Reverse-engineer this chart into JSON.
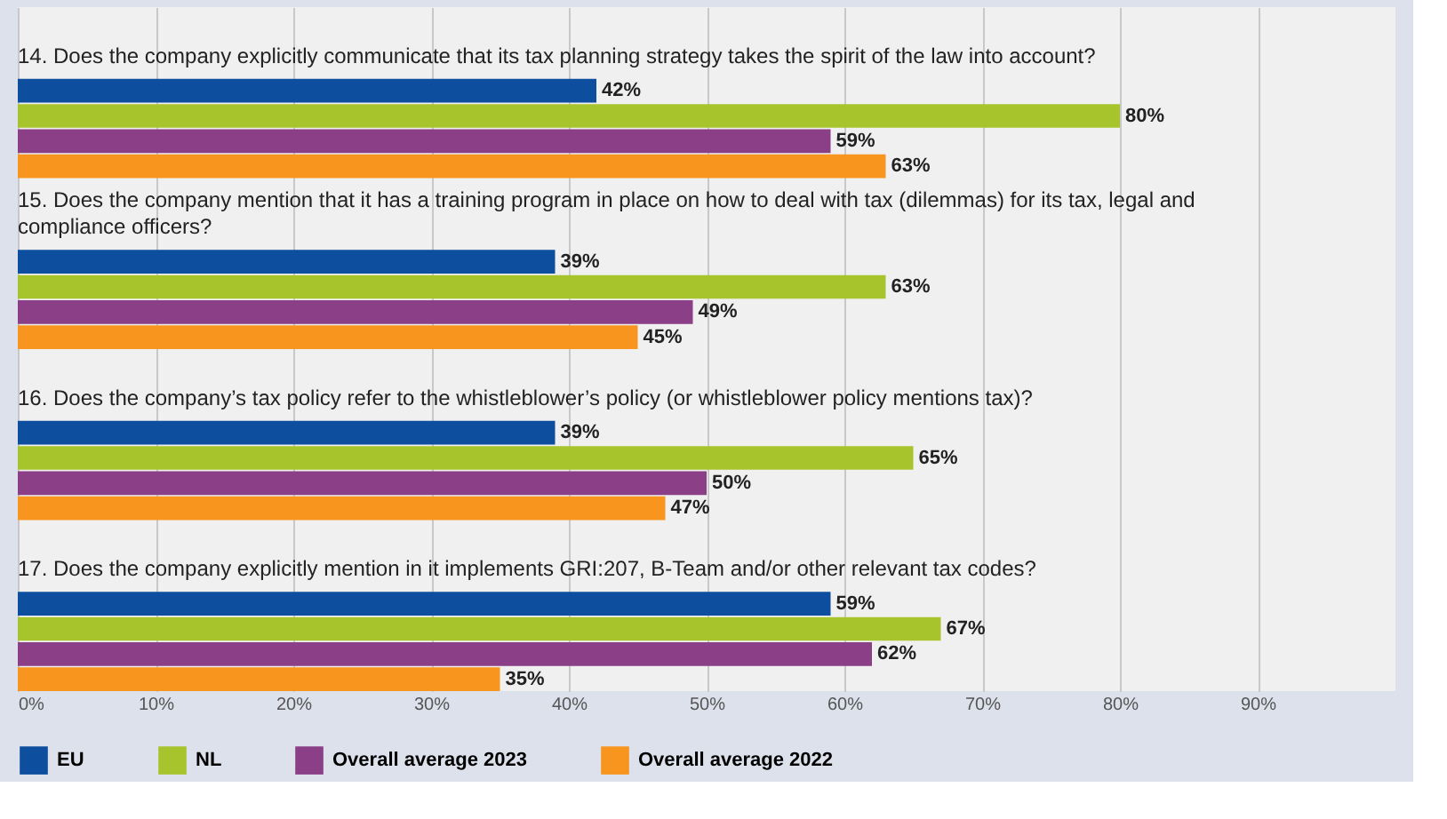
{
  "chart_data": {
    "type": "bar",
    "orientation": "horizontal",
    "categories": [
      "14. Does the company explicitly communicate that its tax planning strategy takes the spirit of the law into account?",
      "15. Does the company mention that it has a training program in place on how to deal with tax (dilemmas) for its tax, legal and compliance officers?",
      "16. Does the company’s tax policy refer to the whistleblower’s policy (or whistleblower policy mentions tax)?",
      "17. Does the company explicitly mention in it implements GRI:207, B-Team and/or other relevant tax codes?"
    ],
    "series": [
      {
        "name": "EU",
        "color": "#0d4f9e",
        "values": [
          42,
          39,
          39,
          59
        ],
        "value_labels": [
          "42%",
          "39%",
          "39%",
          "59%"
        ]
      },
      {
        "name": "NL",
        "color": "#a8c42c",
        "values": [
          80,
          63,
          65,
          67
        ],
        "value_labels": [
          "80%",
          "63%",
          "65%",
          "67%"
        ]
      },
      {
        "name": "Overall average 2023",
        "color": "#8b3f86",
        "values": [
          59,
          49,
          50,
          62
        ],
        "value_labels": [
          "59%",
          "49%",
          "50%",
          "62%"
        ]
      },
      {
        "name": "Overall average 2022",
        "color": "#f7951e",
        "values": [
          63,
          45,
          47,
          35
        ],
        "value_labels": [
          "63%",
          "45%",
          "47%",
          "35%"
        ]
      }
    ],
    "xlim": [
      0,
      100
    ],
    "xticks": [
      {
        "value": 0,
        "label": "0%"
      },
      {
        "value": 10,
        "label": "10%"
      },
      {
        "value": 20,
        "label": "20%"
      },
      {
        "value": 30,
        "label": "30%"
      },
      {
        "value": 40,
        "label": "40%"
      },
      {
        "value": 50,
        "label": "50%"
      },
      {
        "value": 60,
        "label": "60%"
      },
      {
        "value": 70,
        "label": "70%"
      },
      {
        "value": 80,
        "label": "80%"
      },
      {
        "value": 90,
        "label": "90%"
      }
    ],
    "grid": "x",
    "legend": "bottom"
  }
}
